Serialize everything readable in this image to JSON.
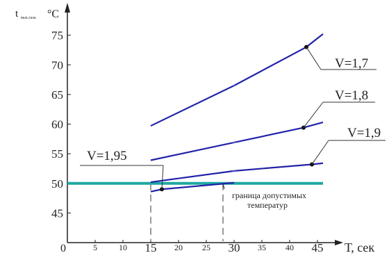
{
  "chart_data": {
    "type": "line",
    "ylabel_main": "t",
    "ylabel_sub": "вых.газа",
    "ylabel_unit": "°C",
    "xlabel": "Т, сек",
    "origin_label": "0",
    "x_ticks": [
      {
        "value": 5,
        "label": "5",
        "size": "small"
      },
      {
        "value": 10,
        "label": "10",
        "size": "small"
      },
      {
        "value": 15,
        "label": "15",
        "size": "large"
      },
      {
        "value": 20,
        "label": "20",
        "size": "small"
      },
      {
        "value": 25,
        "label": "25",
        "size": "small"
      },
      {
        "value": 30,
        "label": "30",
        "size": "large"
      },
      {
        "value": 35,
        "label": "35",
        "size": "small"
      },
      {
        "value": 40,
        "label": "40",
        "size": "small"
      },
      {
        "value": 45,
        "label": "45",
        "size": "large"
      }
    ],
    "y_ticks": [
      45,
      50,
      55,
      60,
      65,
      70,
      75
    ],
    "xlim": [
      0,
      48
    ],
    "ylim": [
      40,
      80
    ],
    "series": [
      {
        "name": "V=1,7",
        "x": [
          15,
          30,
          43,
          46
        ],
        "y": [
          59.7,
          66.5,
          73.0,
          75.2
        ],
        "color": "#2222aa",
        "marker": 43
      },
      {
        "name": "V=1,8",
        "x": [
          15,
          30,
          42.5,
          46
        ],
        "y": [
          53.9,
          56.9,
          59.4,
          60.3
        ],
        "color": "#2222aa",
        "marker": 42.5
      },
      {
        "name": "V=1,9",
        "x": [
          15,
          30,
          44,
          46
        ],
        "y": [
          50.2,
          52.1,
          53.2,
          53.4
        ],
        "color": "#2222aa",
        "marker": 44
      },
      {
        "name": "V=1,95",
        "x": [
          15,
          17,
          30
        ],
        "y": [
          48.6,
          49.0,
          50.1
        ],
        "color": "#2222aa",
        "marker": 17
      }
    ],
    "threshold": {
      "value": 50,
      "color": "#1ea8a0",
      "label_lines": [
        "граница допустимых",
        "температур"
      ]
    },
    "guide_lines_x": [
      15,
      28
    ],
    "grid": false
  }
}
